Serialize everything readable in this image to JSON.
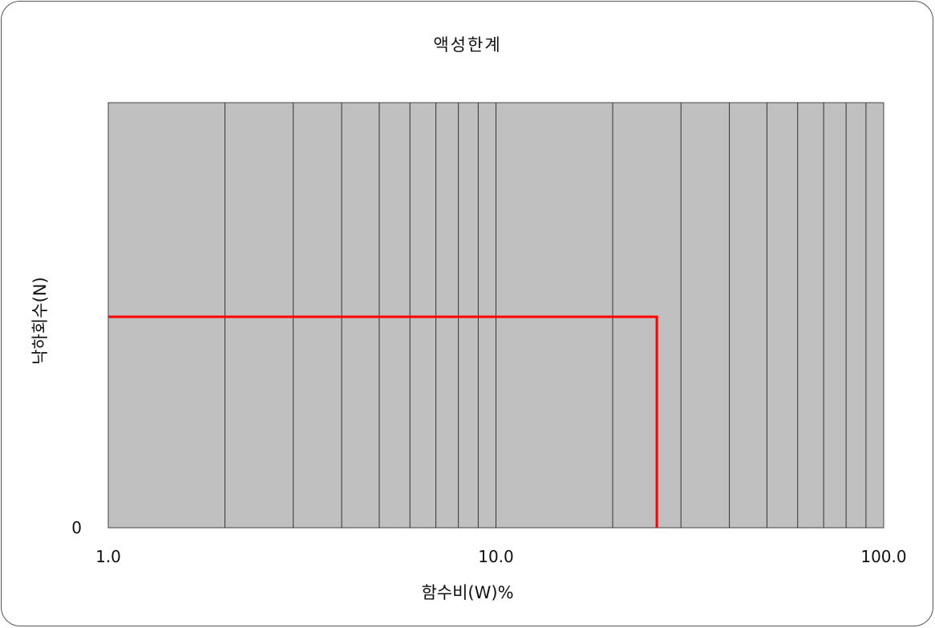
{
  "chart_data": {
    "type": "line",
    "title": "액성한계",
    "xlabel": "함수비(W)%",
    "ylabel": "낙하회수(N)",
    "x_scale": "log",
    "xlim": [
      1.0,
      100.0
    ],
    "x_tick_labels": [
      "1.0",
      "10.0",
      "100.0"
    ],
    "y_tick_labels": [
      "0"
    ],
    "plot_background": "#c0c0c0",
    "grid": true,
    "series": [
      {
        "color": "#ff0000",
        "x": [
          1.0,
          26.0,
          26.0
        ],
        "y": [
          "y-marker",
          "y-marker",
          0
        ]
      }
    ]
  }
}
